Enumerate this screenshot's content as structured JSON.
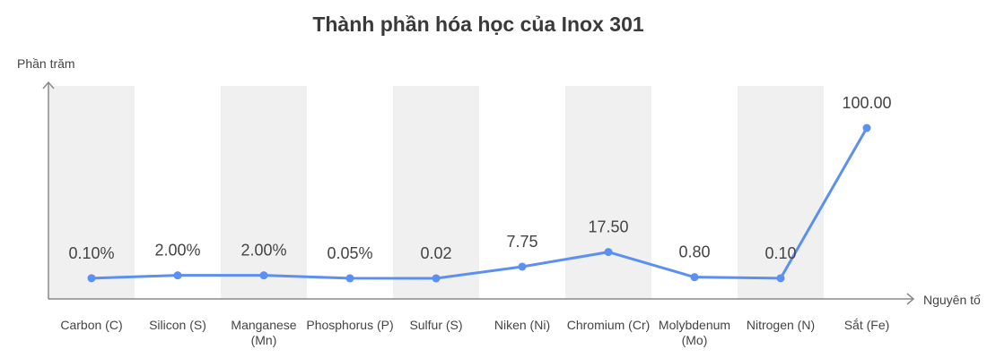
{
  "chart_data": {
    "type": "line",
    "title": "Thành phần hóa học của Inox 301",
    "xlabel": "Nguyên tố",
    "ylabel": "Phần trăm",
    "categories": [
      "Carbon (C)",
      "Silicon (S)",
      "Manganese (Mn)",
      "Phosphorus (P)",
      "Sulfur (S)",
      "Niken (Ni)",
      "Chromium (Cr)",
      "Molybdenum (Mo)",
      "Nitrogen (N)",
      "Sắt (Fe)"
    ],
    "category_lines": [
      [
        "Carbon (C)"
      ],
      [
        "Silicon (S)"
      ],
      [
        "Manganese",
        "(Mn)"
      ],
      [
        "Phosphorus (P)"
      ],
      [
        "Sulfur (S)"
      ],
      [
        "Niken (Ni)"
      ],
      [
        "Chromium (Cr)"
      ],
      [
        "Molybdenum",
        "(Mo)"
      ],
      [
        "Nitrogen (N)"
      ],
      [
        "Sắt (Fe)"
      ]
    ],
    "values": [
      0.1,
      2.0,
      2.0,
      0.05,
      0.02,
      7.75,
      17.5,
      0.8,
      0.1,
      100.0
    ],
    "data_labels": [
      "0.10%",
      "2.00%",
      "2.00%",
      "0.05%",
      "0.02",
      "7.75",
      "17.50",
      "0.80",
      "0.10",
      "100.00"
    ],
    "ylim": [
      0,
      100
    ],
    "grid": false,
    "banded_background": true,
    "line_color": "#5b8ff2",
    "band_color": "#f0f0f0",
    "axis_color": "#8a8a8a"
  }
}
